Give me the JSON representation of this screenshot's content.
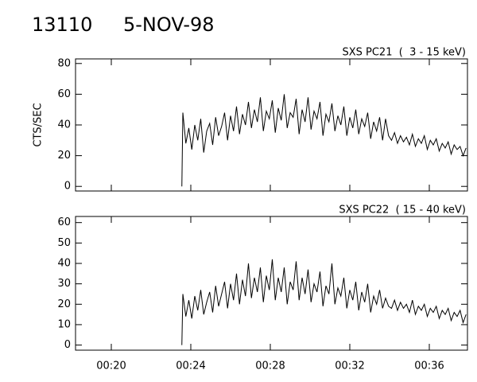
{
  "header": {
    "id": "13110",
    "date": "5-NOV-98"
  },
  "chart_data": [
    {
      "type": "line",
      "title": "SXS PC21  (  3 - 15 keV)",
      "y_label": "CTS/SEC",
      "color": "#000000",
      "x": [
        23.55,
        23.6,
        23.75,
        23.9,
        24.05,
        24.2,
        24.35,
        24.5,
        24.65,
        24.8,
        24.95,
        25.1,
        25.25,
        25.4,
        25.55,
        25.7,
        25.85,
        26,
        26.15,
        26.3,
        26.45,
        26.6,
        26.75,
        26.9,
        27.05,
        27.2,
        27.35,
        27.5,
        27.65,
        27.8,
        27.95,
        28.1,
        28.25,
        28.4,
        28.55,
        28.7,
        28.85,
        29,
        29.15,
        29.3,
        29.45,
        29.6,
        29.75,
        29.9,
        30.05,
        30.2,
        30.35,
        30.5,
        30.65,
        30.8,
        30.95,
        31.1,
        31.25,
        31.4,
        31.55,
        31.7,
        31.85,
        32,
        32.15,
        32.3,
        32.45,
        32.6,
        32.75,
        32.9,
        33.05,
        33.2,
        33.35,
        33.5,
        33.65,
        33.8,
        33.95,
        34.1,
        34.25,
        34.4,
        34.55,
        34.7,
        34.85,
        35,
        35.15,
        35.3,
        35.45,
        35.6,
        35.75,
        35.9,
        36.05,
        36.2,
        36.35,
        36.5,
        36.65,
        36.8,
        36.95,
        37.1,
        37.25,
        37.4,
        37.55,
        37.7,
        37.85
      ],
      "values": [
        0,
        48,
        28,
        38,
        24,
        40,
        30,
        44,
        22,
        36,
        41,
        27,
        45,
        33,
        39,
        48,
        30,
        46,
        36,
        52,
        34,
        47,
        40,
        55,
        38,
        50,
        42,
        58,
        36,
        49,
        44,
        56,
        35,
        51,
        43,
        60,
        38,
        48,
        45,
        57,
        34,
        50,
        42,
        58,
        37,
        49,
        44,
        55,
        33,
        47,
        42,
        54,
        36,
        46,
        40,
        52,
        33,
        45,
        38,
        50,
        34,
        44,
        39,
        48,
        31,
        42,
        36,
        45,
        30,
        44,
        33,
        30,
        35,
        28,
        33,
        29,
        32,
        27,
        34,
        26,
        31,
        28,
        33,
        24,
        30,
        27,
        31,
        23,
        28,
        25,
        29,
        21,
        27,
        24,
        26,
        20,
        25
      ],
      "xlim": [
        18.2,
        37.92
      ],
      "ylim": [
        -3,
        83
      ],
      "yticks": [
        0,
        20,
        40,
        60,
        80
      ]
    },
    {
      "type": "line",
      "title": "SXS PC22  ( 15 - 40 keV)",
      "color": "#000000",
      "x": [
        23.55,
        23.6,
        23.75,
        23.9,
        24.05,
        24.2,
        24.35,
        24.5,
        24.65,
        24.8,
        24.95,
        25.1,
        25.25,
        25.4,
        25.55,
        25.7,
        25.85,
        26,
        26.15,
        26.3,
        26.45,
        26.6,
        26.75,
        26.9,
        27.05,
        27.2,
        27.35,
        27.5,
        27.65,
        27.8,
        27.95,
        28.1,
        28.25,
        28.4,
        28.55,
        28.7,
        28.85,
        29,
        29.15,
        29.3,
        29.45,
        29.6,
        29.75,
        29.9,
        30.05,
        30.2,
        30.35,
        30.5,
        30.65,
        30.8,
        30.95,
        31.1,
        31.25,
        31.4,
        31.55,
        31.7,
        31.85,
        32,
        32.15,
        32.3,
        32.45,
        32.6,
        32.75,
        32.9,
        33.05,
        33.2,
        33.35,
        33.5,
        33.65,
        33.8,
        33.95,
        34.1,
        34.25,
        34.4,
        34.55,
        34.7,
        34.85,
        35,
        35.15,
        35.3,
        35.45,
        35.6,
        35.75,
        35.9,
        36.05,
        36.2,
        36.35,
        36.5,
        36.65,
        36.8,
        36.95,
        37.1,
        37.25,
        37.4,
        37.55,
        37.7,
        37.85
      ],
      "values": [
        0,
        25,
        14,
        22,
        13,
        24,
        17,
        27,
        15,
        21,
        26,
        16,
        29,
        19,
        25,
        31,
        18,
        30,
        22,
        35,
        20,
        32,
        24,
        40,
        23,
        33,
        26,
        38,
        21,
        34,
        27,
        42,
        22,
        33,
        26,
        38,
        20,
        31,
        27,
        41,
        22,
        33,
        25,
        37,
        21,
        30,
        26,
        36,
        19,
        29,
        25,
        40,
        20,
        28,
        24,
        33,
        18,
        27,
        22,
        31,
        17,
        26,
        21,
        30,
        16,
        24,
        20,
        27,
        18,
        23,
        19,
        18,
        22,
        17,
        21,
        18,
        20,
        16,
        22,
        15,
        19,
        17,
        20,
        14,
        18,
        16,
        19,
        13,
        17,
        15,
        18,
        12,
        16,
        14,
        17,
        11,
        15
      ],
      "xlim": [
        18.2,
        37.92
      ],
      "ylim": [
        -2.5,
        63
      ],
      "yticks": [
        0,
        10,
        20,
        30,
        40,
        50,
        60
      ],
      "xticks": [
        {
          "value": 20,
          "label": "00:20"
        },
        {
          "value": 24,
          "label": "00:24"
        },
        {
          "value": 28,
          "label": "00:28"
        },
        {
          "value": 32,
          "label": "00:32"
        },
        {
          "value": 36,
          "label": "00:36"
        }
      ]
    }
  ]
}
